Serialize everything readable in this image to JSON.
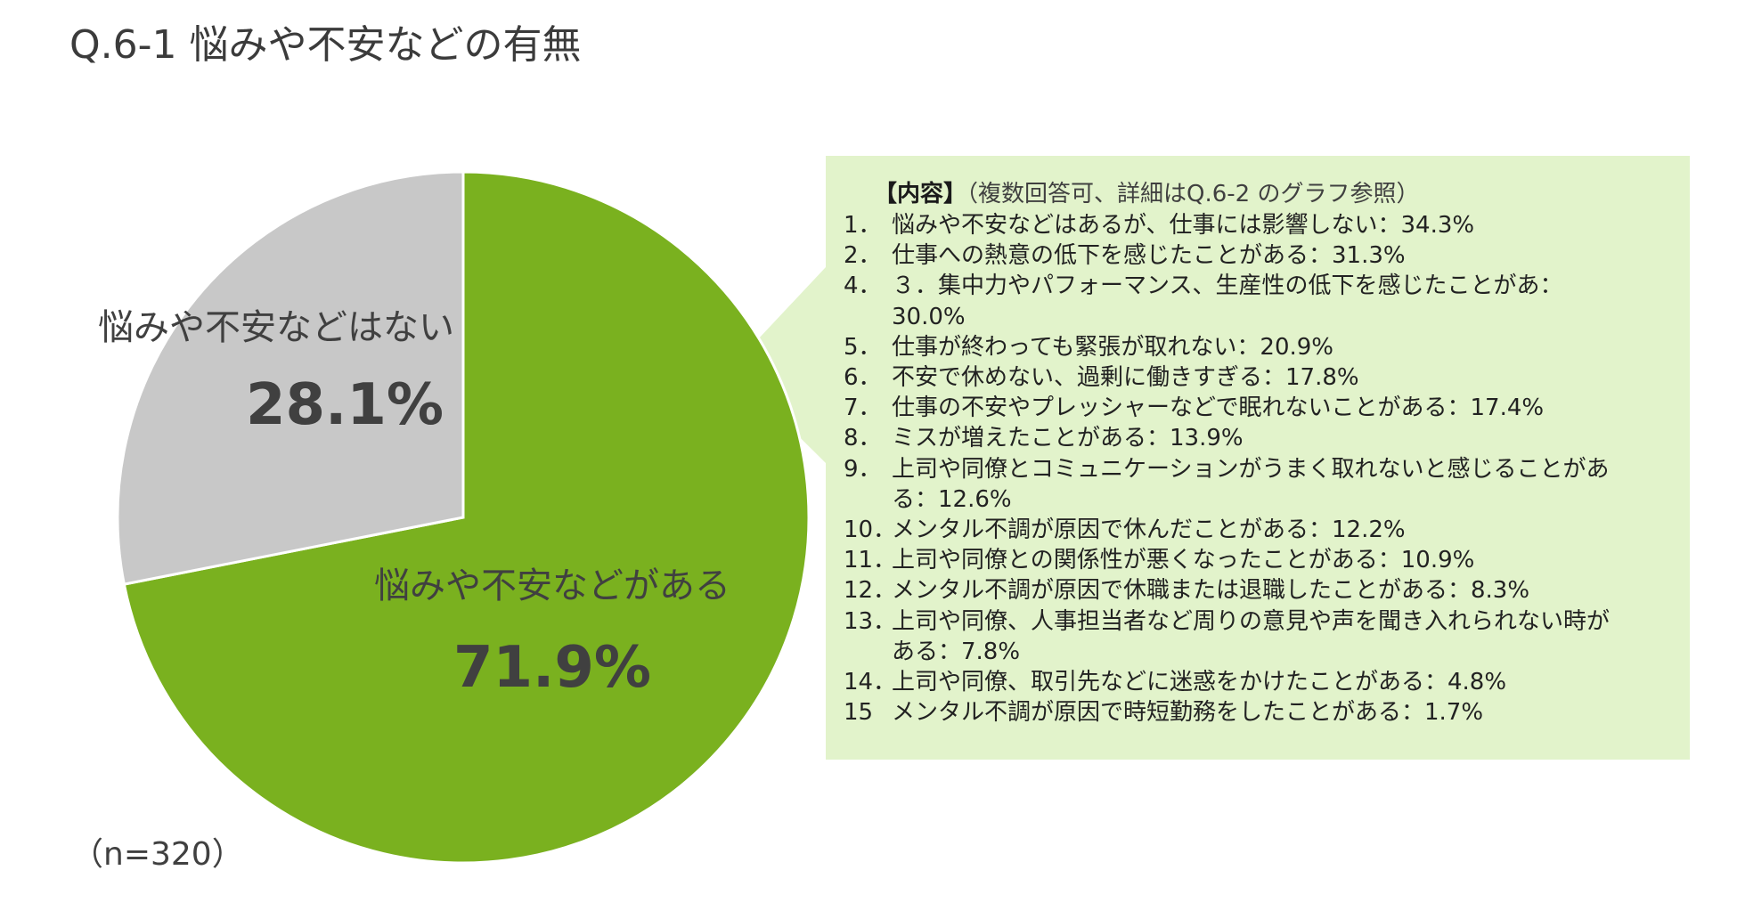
{
  "title": "Q.6-1 悩みや不安などの有無",
  "sample_size": "（n=320）",
  "colors": {
    "yes": "#7ab11f",
    "no": "#c8c8c8",
    "callout_bg": "#e2f3cb"
  },
  "chart_data": {
    "type": "pie",
    "title": "Q.6-1 悩みや不安などの有無",
    "slices": [
      {
        "label": "悩みや不安などがある",
        "value": 71.9,
        "value_label": "71.9%",
        "color": "#7ab11f"
      },
      {
        "label": "悩みや不安などはない",
        "value": 28.1,
        "value_label": "28.1%",
        "color": "#c8c8c8"
      }
    ]
  },
  "callout": {
    "heading_bold": "【内容】",
    "heading_note": "（複数回答可、詳細はQ.6-2 のグラフ参照）",
    "items": [
      {
        "num": "1．",
        "text": "悩みや不安などはあるが、仕事には影響しない：34.3%"
      },
      {
        "num": "2．",
        "text": "仕事への熱意の低下を感じたことがある：31.3%"
      },
      {
        "num": "4．",
        "text": "３．集中力やパフォーマンス、生産性の低下を感じたことがあ：30.0%"
      },
      {
        "num": "5．",
        "text": "仕事が終わっても緊張が取れない：20.9%"
      },
      {
        "num": "6．",
        "text": "不安で休めない、過剰に働きすぎる：17.8%"
      },
      {
        "num": "7．",
        "text": "仕事の不安やプレッシャーなどで眠れないことがある：17.4%"
      },
      {
        "num": "8．",
        "text": "ミスが増えたことがある：13.9%"
      },
      {
        "num": "9．",
        "text": "上司や同僚とコミュニケーションがうまく取れないと感じることがある：12.6%"
      },
      {
        "num": "10．",
        "text": "メンタル不調が原因で休んだことがある：12.2%"
      },
      {
        "num": "11．",
        "text": "上司や同僚との関係性が悪くなったことがある：10.9%"
      },
      {
        "num": "12．",
        "text": "メンタル不調が原因で休職または退職したことがある：8.3%"
      },
      {
        "num": "13．",
        "text": "上司や同僚、人事担当者など周りの意見や声を聞き入れられない時がある：7.8%"
      },
      {
        "num": "14．",
        "text": "上司や同僚、取引先などに迷惑をかけたことがある：4.8%"
      },
      {
        "num": "15",
        "text": "メンタル不調が原因で時短勤務をしたことがある：1.7%"
      }
    ]
  }
}
